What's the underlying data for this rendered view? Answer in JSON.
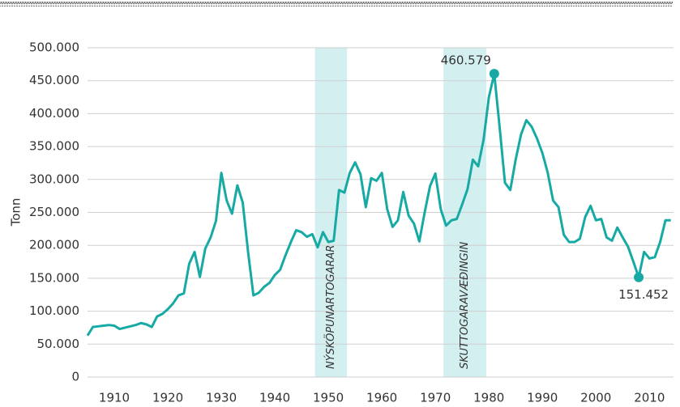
{
  "chart_data": {
    "type": "line",
    "y_label": "Tonn",
    "color": "#17aaa5",
    "x": [
      1905,
      1906,
      1907,
      1908,
      1909,
      1910,
      1911,
      1912,
      1913,
      1914,
      1915,
      1916,
      1917,
      1918,
      1919,
      1920,
      1921,
      1922,
      1923,
      1924,
      1925,
      1926,
      1927,
      1928,
      1929,
      1930,
      1931,
      1932,
      1933,
      1934,
      1935,
      1936,
      1937,
      1938,
      1939,
      1940,
      1941,
      1942,
      1943,
      1944,
      1945,
      1946,
      1947,
      1948,
      1949,
      1950,
      1951,
      1952,
      1953,
      1954,
      1955,
      1956,
      1957,
      1958,
      1959,
      1960,
      1961,
      1962,
      1963,
      1964,
      1965,
      1966,
      1967,
      1968,
      1969,
      1970,
      1971,
      1972,
      1973,
      1974,
      1975,
      1976,
      1977,
      1978,
      1979,
      1980,
      1981,
      1982,
      1983,
      1984,
      1985,
      1986,
      1987,
      1988,
      1989,
      1990,
      1991,
      1992,
      1993,
      1994,
      1995,
      1996,
      1997,
      1998,
      1999,
      2000,
      2001,
      2002,
      2003,
      2004,
      2005,
      2006,
      2007,
      2008,
      2009,
      2010,
      2011,
      2012,
      2013,
      2014
    ],
    "values": [
      63000,
      76000,
      77000,
      78000,
      79000,
      78000,
      73000,
      75000,
      77000,
      79000,
      82000,
      80000,
      76000,
      92000,
      96000,
      103000,
      112000,
      124000,
      127000,
      172000,
      190000,
      152000,
      195000,
      212000,
      237000,
      310000,
      268000,
      248000,
      291000,
      265000,
      190000,
      124000,
      128000,
      137000,
      143000,
      155000,
      163000,
      185000,
      205000,
      223000,
      220000,
      213000,
      217000,
      197000,
      220000,
      205000,
      207000,
      284000,
      280000,
      310000,
      326000,
      308000,
      258000,
      302000,
      298000,
      310000,
      255000,
      228000,
      238000,
      281000,
      245000,
      233000,
      206000,
      250000,
      290000,
      309000,
      255000,
      230000,
      238000,
      240000,
      262000,
      285000,
      330000,
      320000,
      360000,
      425000,
      460579,
      380000,
      295000,
      284000,
      330000,
      368000,
      390000,
      380000,
      362000,
      340000,
      310000,
      268000,
      258000,
      216000,
      205000,
      205000,
      210000,
      243000,
      260000,
      238000,
      240000,
      212000,
      207000,
      227000,
      212000,
      198000,
      175000,
      151452,
      190000,
      180000,
      182000,
      205000,
      238000,
      238000
    ],
    "value_labels": [
      null,
      null,
      null,
      null,
      null,
      null,
      null,
      null,
      null,
      null,
      null,
      null,
      null,
      null,
      null,
      null,
      null,
      null,
      null,
      null,
      null,
      null,
      null,
      null,
      null,
      null,
      null,
      null,
      null,
      null,
      null,
      null,
      null,
      null,
      null,
      null,
      null,
      null,
      null,
      null,
      null,
      null,
      null,
      null,
      null,
      null,
      null,
      null,
      null,
      null,
      null,
      null,
      null,
      null,
      null,
      null,
      null,
      null,
      null,
      null,
      null,
      null,
      null,
      null,
      null,
      null,
      null,
      null,
      null,
      null,
      null,
      null,
      null,
      null,
      null,
      null,
      "460.579",
      null,
      null,
      null,
      null,
      null,
      null,
      null,
      null,
      null,
      null,
      null,
      null,
      null,
      null,
      null,
      null,
      null,
      null,
      null,
      null,
      null,
      null,
      null,
      null,
      null,
      null,
      "151.452",
      null,
      null,
      null,
      null,
      null,
      null
    ],
    "bands": [
      {
        "label": "NÝSKÖPUNARTOGARAR",
        "x": [
          1947.5,
          1953.5
        ]
      },
      {
        "label": "SKUTTOGARAVÆÐINGIN",
        "x": [
          1971.5,
          1979.5
        ]
      }
    ],
    "band_color": "#d4eff0",
    "xlim": [
      1905,
      2014.5
    ],
    "xticks": [
      1910,
      1920,
      1930,
      1940,
      1950,
      1960,
      1970,
      1980,
      1990,
      2000,
      2010
    ],
    "ylim": [
      0,
      500000
    ],
    "yticks": [
      0,
      {
        "value": 50000,
        "label": "50.000"
      },
      {
        "value": 100000,
        "label": "100.000"
      },
      {
        "value": 150000,
        "label": "150.000"
      },
      {
        "value": 200000,
        "label": "200.000"
      },
      {
        "value": 250000,
        "label": "250.000"
      },
      {
        "value": 300000,
        "label": "300.000"
      },
      {
        "value": 350000,
        "label": "350.000"
      },
      {
        "value": 400000,
        "label": "400.000"
      },
      {
        "value": 450000,
        "label": "450.000"
      },
      {
        "value": 500000,
        "label": "500.000"
      }
    ],
    "grid": true
  }
}
